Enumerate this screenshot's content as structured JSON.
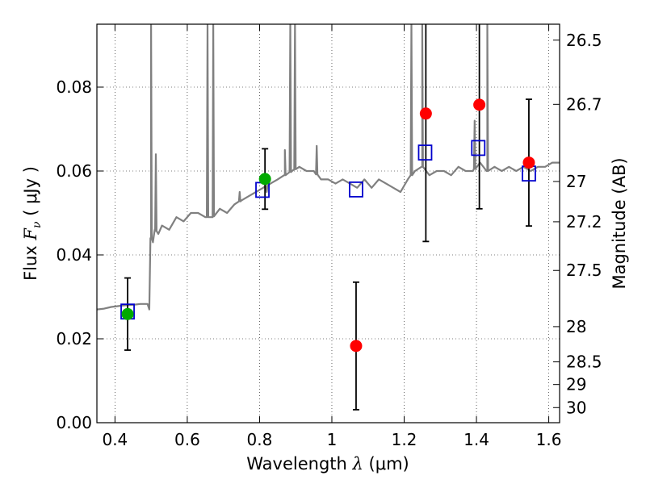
{
  "chart_data": {
    "type": "scatter",
    "xlabel": {
      "prefix": "Wavelength",
      "symbol": "λ",
      "unit": "(μm)"
    },
    "ylabel": {
      "prefix": "Flux",
      "symbol": "F",
      "sub": "ν",
      "unit": "( μJy )"
    },
    "y2label": "Magnitude (AB)",
    "xlim": [
      0.35,
      1.63
    ],
    "ylim": [
      0.0,
      0.095
    ],
    "grid": true,
    "x_ticks": [
      0.4,
      0.6,
      0.8,
      1.0,
      1.2,
      1.4,
      1.6
    ],
    "x_tick_labels": [
      "0.4",
      "0.6",
      "0.8",
      "1",
      "1.2",
      "1.4",
      "1.6"
    ],
    "y_ticks": [
      0.0,
      0.02,
      0.04,
      0.06,
      0.08
    ],
    "y_tick_labels": [
      "0.00",
      "0.02",
      "0.04",
      "0.06",
      "0.08"
    ],
    "y2_ticks": [
      {
        "label": "26.5",
        "flux": 0.0912
      },
      {
        "label": "26.7",
        "flux": 0.0759
      },
      {
        "label": "27",
        "flux": 0.0575
      },
      {
        "label": "27.2",
        "flux": 0.0479
      },
      {
        "label": "27.5",
        "flux": 0.0363
      },
      {
        "label": "28",
        "flux": 0.0229
      },
      {
        "label": "28.5",
        "flux": 0.0145
      },
      {
        "label": "29",
        "flux": 0.0091
      },
      {
        "label": "30",
        "flux": 0.0036
      }
    ],
    "colors": {
      "spectrum": "#808080",
      "model_photometry": "#0000cc",
      "observed_detection": "#00aa00",
      "observed_other": "#ff0000",
      "errorbar": "#000000"
    },
    "series": [
      {
        "role": "spectrum",
        "x": [
          0.35,
          0.37,
          0.39,
          0.41,
          0.43,
          0.45,
          0.47,
          0.49,
          0.495,
          0.5,
          0.505,
          0.51,
          0.52,
          0.53,
          0.55,
          0.57,
          0.59,
          0.61,
          0.63,
          0.65,
          0.67,
          0.69,
          0.71,
          0.73,
          0.75,
          0.77,
          0.79,
          0.81,
          0.83,
          0.85,
          0.87,
          0.89,
          0.91,
          0.93,
          0.95,
          0.97,
          0.99,
          1.01,
          1.03,
          1.05,
          1.07,
          1.09,
          1.11,
          1.13,
          1.15,
          1.17,
          1.19,
          1.21,
          1.23,
          1.25,
          1.27,
          1.29,
          1.31,
          1.33,
          1.35,
          1.37,
          1.39,
          1.41,
          1.43,
          1.45,
          1.47,
          1.49,
          1.51,
          1.53,
          1.55,
          1.57,
          1.59,
          1.61,
          1.63
        ],
        "y": [
          0.027,
          0.0272,
          0.0276,
          0.0278,
          0.028,
          0.0281,
          0.0283,
          0.0283,
          0.027,
          0.044,
          0.043,
          0.046,
          0.045,
          0.047,
          0.046,
          0.049,
          0.048,
          0.05,
          0.05,
          0.049,
          0.049,
          0.051,
          0.05,
          0.052,
          0.053,
          0.054,
          0.055,
          0.056,
          0.057,
          0.058,
          0.059,
          0.06,
          0.061,
          0.06,
          0.06,
          0.058,
          0.058,
          0.057,
          0.058,
          0.057,
          0.056,
          0.058,
          0.056,
          0.058,
          0.057,
          0.056,
          0.055,
          0.058,
          0.06,
          0.061,
          0.059,
          0.06,
          0.06,
          0.059,
          0.061,
          0.06,
          0.06,
          0.062,
          0.06,
          0.061,
          0.06,
          0.061,
          0.06,
          0.061,
          0.06,
          0.061,
          0.061,
          0.062,
          0.062
        ],
        "emission_lines": [
          {
            "x": 0.5,
            "peak": 0.095
          },
          {
            "x": 0.513,
            "peak": 0.064
          },
          {
            "x": 0.656,
            "peak": 0.095
          },
          {
            "x": 0.672,
            "peak": 0.095
          },
          {
            "x": 0.745,
            "peak": 0.055
          },
          {
            "x": 0.82,
            "peak": 0.055
          },
          {
            "x": 0.87,
            "peak": 0.065
          },
          {
            "x": 0.885,
            "peak": 0.095
          },
          {
            "x": 0.898,
            "peak": 0.095
          },
          {
            "x": 0.958,
            "peak": 0.066
          },
          {
            "x": 1.22,
            "peak": 0.095
          },
          {
            "x": 1.25,
            "peak": 0.095
          },
          {
            "x": 1.395,
            "peak": 0.072
          },
          {
            "x": 1.43,
            "peak": 0.095
          }
        ]
      },
      {
        "role": "model_photometry",
        "x": [
          0.435,
          0.808,
          1.067,
          1.258,
          1.405,
          1.545
        ],
        "y": [
          0.0265,
          0.0555,
          0.0556,
          0.0644,
          0.0655,
          0.0594
        ]
      },
      {
        "role": "observed",
        "points": [
          {
            "x": 0.435,
            "y": 0.0259,
            "err": 0.0086,
            "color": "observed_detection"
          },
          {
            "x": 0.815,
            "y": 0.0581,
            "err": 0.0072,
            "color": "observed_detection"
          },
          {
            "x": 1.067,
            "y": 0.0183,
            "err": 0.0152,
            "color": "observed_other"
          },
          {
            "x": 1.26,
            "y": 0.0737,
            "err": 0.0305,
            "color": "observed_other"
          },
          {
            "x": 1.408,
            "y": 0.0758,
            "err": 0.0248,
            "color": "observed_other"
          },
          {
            "x": 1.545,
            "y": 0.062,
            "err": 0.0151,
            "color": "observed_other"
          }
        ]
      }
    ]
  }
}
